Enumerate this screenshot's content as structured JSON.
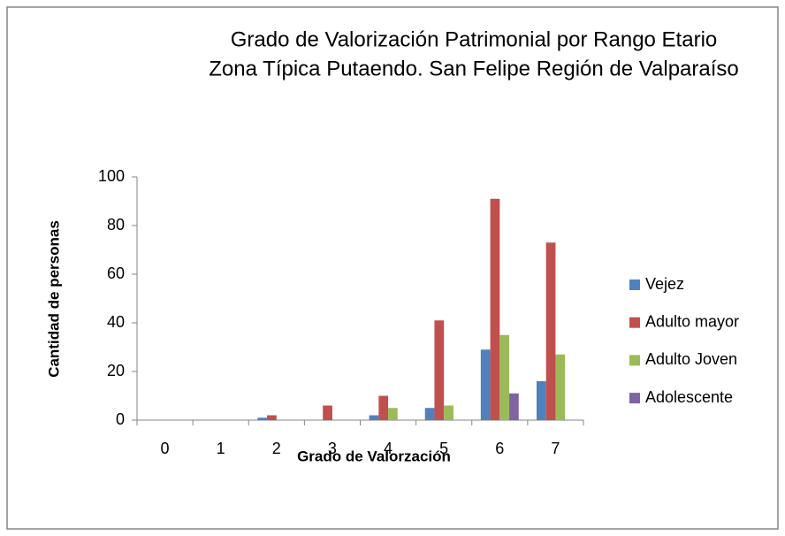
{
  "chart_data": {
    "type": "bar",
    "title": [
      "Grado de Valorización Patrimonial por Rango Etario",
      "Zona Típica Putaendo. San Felipe Región de Valparaíso"
    ],
    "x_label": "Grado de Valorzación",
    "y_label": "Cantidad de personas",
    "categories": [
      "0",
      "1",
      "2",
      "3",
      "4",
      "5",
      "6",
      "7"
    ],
    "series": [
      {
        "name": "Vejez",
        "color": "#4f81bd",
        "values": [
          0,
          0,
          1,
          0,
          2,
          5,
          29,
          16
        ]
      },
      {
        "name": "Adulto mayor",
        "color": "#c0504d",
        "values": [
          0,
          0,
          2,
          6,
          10,
          41,
          91,
          73
        ]
      },
      {
        "name": "Adulto Joven",
        "color": "#9bbb59",
        "values": [
          0,
          0,
          0,
          0,
          5,
          6,
          35,
          27
        ]
      },
      {
        "name": "Adolescente",
        "color": "#8064a2",
        "values": [
          0,
          0,
          0,
          0,
          0,
          0,
          11,
          0
        ]
      }
    ],
    "ylim": [
      0,
      100
    ],
    "yticks": [
      0,
      20,
      40,
      60,
      80,
      100
    ],
    "legend": "right"
  }
}
